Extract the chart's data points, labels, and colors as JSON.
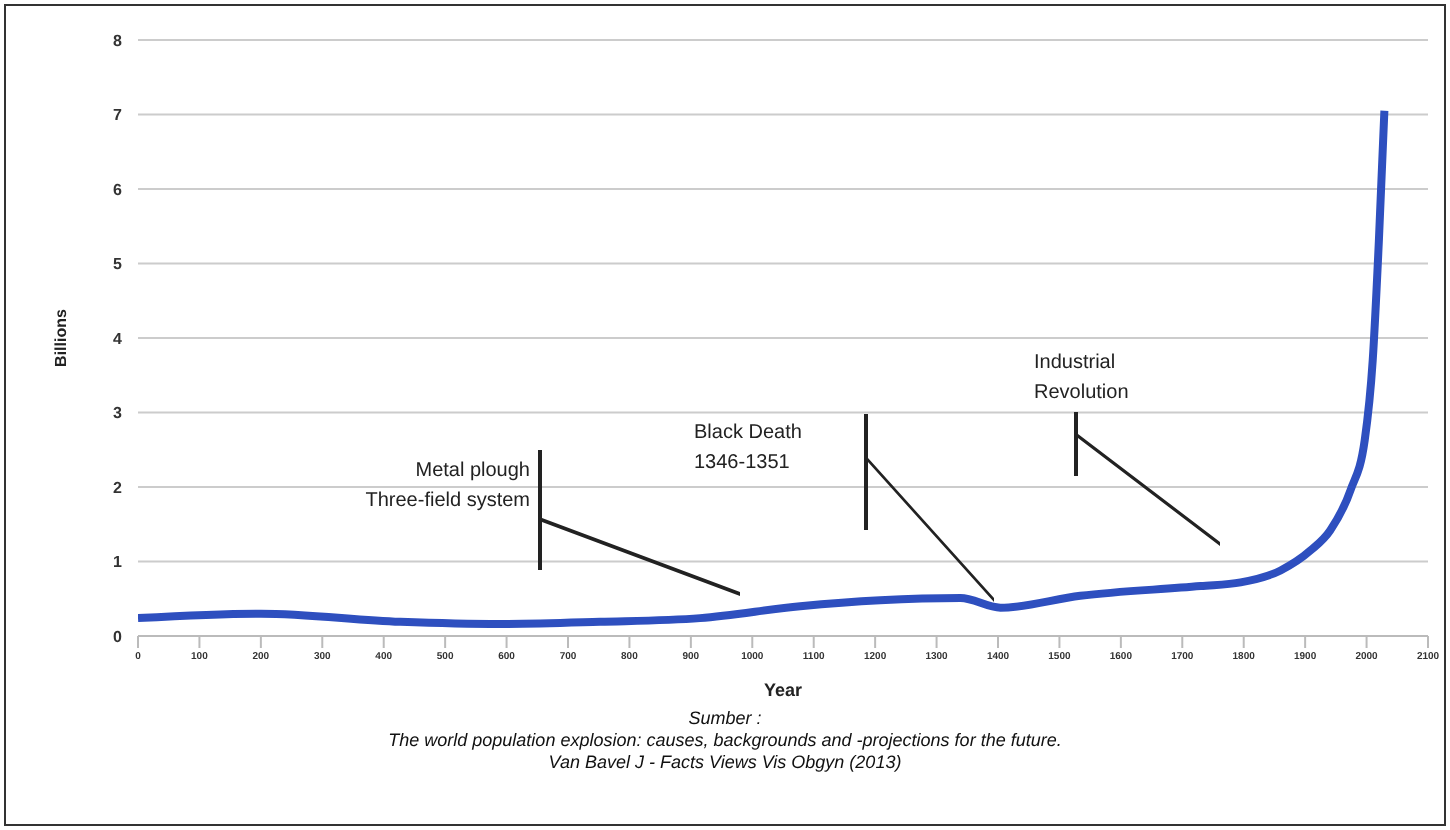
{
  "chart_data": {
    "type": "line",
    "xlabel": "Year",
    "ylabel": "Billions",
    "x": [
      0,
      200,
      427,
      590,
      752,
      915,
      1078,
      1208,
      1339,
      1404,
      1534,
      1730,
      1795,
      1860,
      1909,
      1941,
      1974,
      1997,
      2010,
      2020,
      2029
    ],
    "series": [
      {
        "color": "#2e4fbf",
        "values": [
          0.24,
          0.3,
          0.19,
          0.16,
          0.19,
          0.24,
          0.4,
          0.48,
          0.51,
          0.38,
          0.54,
          0.67,
          0.72,
          0.88,
          1.15,
          1.42,
          1.96,
          2.63,
          3.7,
          5.3,
          7.05
        ]
      }
    ],
    "xlim": [
      0,
      2100
    ],
    "xticks": [
      0,
      100,
      200,
      300,
      400,
      500,
      600,
      700,
      800,
      900,
      1000,
      1100,
      1200,
      1300,
      1400,
      1500,
      1600,
      1700,
      1800,
      1900,
      2000,
      2100
    ],
    "ylim": [
      0,
      8
    ],
    "yticks": [
      0,
      1,
      2,
      3,
      4,
      5,
      6,
      7,
      8
    ],
    "grid": "y",
    "marker": "none",
    "line_style": "solid",
    "annotations": [
      "Metal plough\nThree-field system",
      "Black Death\n1346-1351",
      "Industrial\nRevolution",
      "Sumber :\nThe world population explosion: causes, backgrounds and -projections for the future.\nVan Bavel J - Facts Views Vis Obgyn (2013)"
    ]
  }
}
